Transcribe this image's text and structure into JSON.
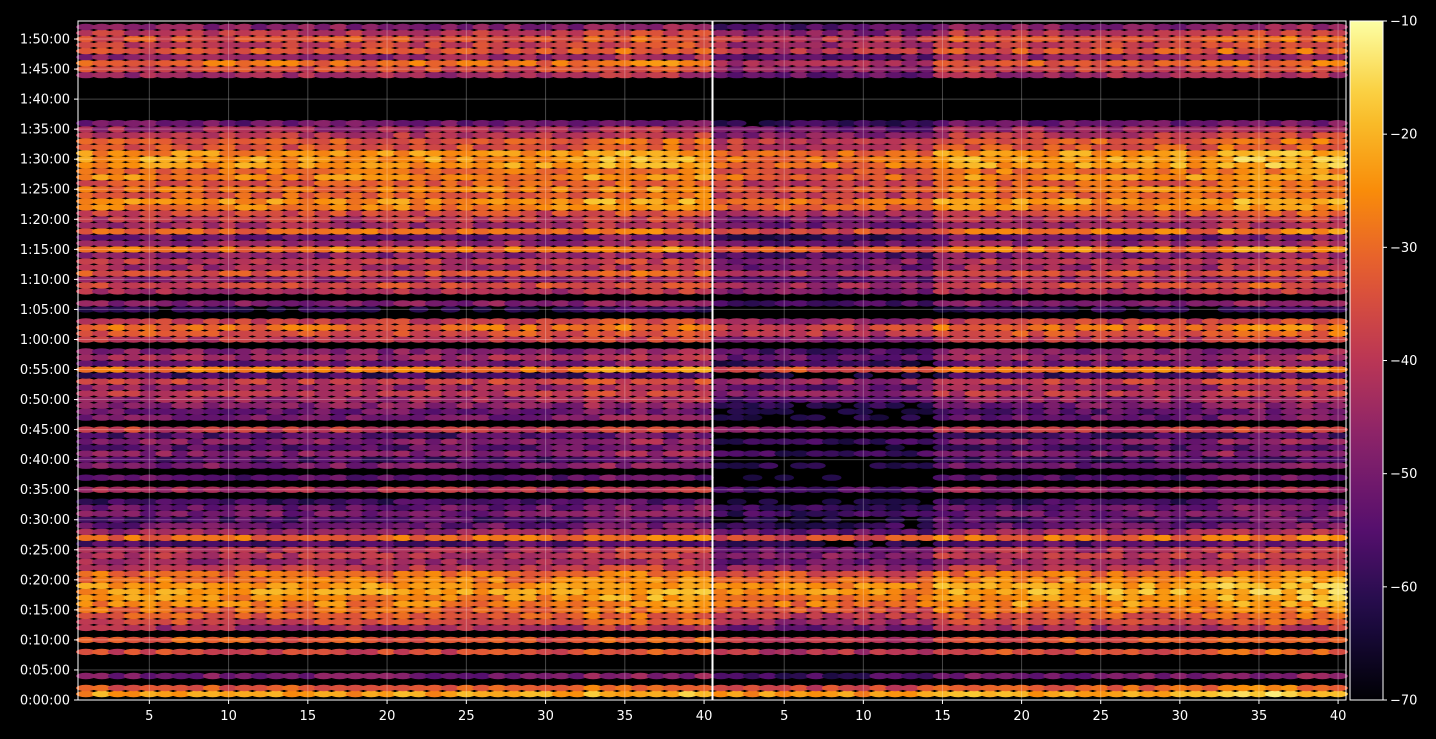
{
  "chart_data": {
    "type": "heatmap",
    "title": "",
    "panels": [
      {
        "name": "",
        "x_range": [
          1,
          40
        ],
        "x_ticks": [
          5,
          10,
          15,
          20,
          25,
          30,
          35,
          40
        ]
      },
      {
        "name": "",
        "x_range": [
          1,
          40
        ],
        "x_ticks": [
          5,
          10,
          15,
          20,
          25,
          30,
          35,
          40
        ]
      }
    ],
    "y_axis": {
      "unit": "seconds",
      "range": [
        0,
        6780
      ],
      "ticks": [
        {
          "value": 0,
          "label": "0:00:00"
        },
        {
          "value": 300,
          "label": "0:05:00"
        },
        {
          "value": 600,
          "label": "0:10:00"
        },
        {
          "value": 900,
          "label": "0:15:00"
        },
        {
          "value": 1200,
          "label": "0:20:00"
        },
        {
          "value": 1500,
          "label": "0:25:00"
        },
        {
          "value": 1800,
          "label": "0:30:00"
        },
        {
          "value": 2100,
          "label": "0:35:00"
        },
        {
          "value": 2400,
          "label": "0:40:00"
        },
        {
          "value": 2700,
          "label": "0:45:00"
        },
        {
          "value": 3000,
          "label": "0:50:00"
        },
        {
          "value": 3300,
          "label": "0:55:00"
        },
        {
          "value": 3600,
          "label": "1:00:00"
        },
        {
          "value": 3900,
          "label": "1:05:00"
        },
        {
          "value": 4200,
          "label": "1:10:00"
        },
        {
          "value": 4500,
          "label": "1:15:00"
        },
        {
          "value": 4800,
          "label": "1:20:00"
        },
        {
          "value": 5100,
          "label": "1:25:00"
        },
        {
          "value": 5400,
          "label": "1:30:00"
        },
        {
          "value": 5700,
          "label": "1:35:00"
        },
        {
          "value": 6000,
          "label": "1:40:00"
        },
        {
          "value": 6300,
          "label": "1:45:00"
        },
        {
          "value": 6600,
          "label": "1:50:00"
        }
      ]
    },
    "colorbar": {
      "range": [
        -70,
        -10
      ],
      "ticks": [
        {
          "value": -10,
          "label": "−10"
        },
        {
          "value": -20,
          "label": "−20"
        },
        {
          "value": -30,
          "label": "−30"
        },
        {
          "value": -40,
          "label": "−40"
        },
        {
          "value": -50,
          "label": "−50"
        },
        {
          "value": -60,
          "label": "−60"
        },
        {
          "value": -70,
          "label": "−70"
        }
      ],
      "colormap": "inferno"
    },
    "grid": true,
    "row_bands": [
      {
        "t": 60,
        "level": -23,
        "p2": 0.75,
        "gap": false
      },
      {
        "t": 120,
        "level": -33,
        "p2": 0.85,
        "gap": false
      },
      {
        "t": 240,
        "level": -50,
        "p2": 1.0,
        "gap": false
      },
      {
        "t": 300,
        "level": -66,
        "p2": 1.0,
        "gap": true
      },
      {
        "t": 480,
        "level": -36,
        "p2": 0.9,
        "gap": false
      },
      {
        "t": 600,
        "level": -33,
        "p2": 0.95,
        "gap": false
      },
      {
        "t": 720,
        "level": -43,
        "p2": 1.0,
        "gap": false
      },
      {
        "t": 780,
        "level": -36,
        "p2": 1.0,
        "gap": false
      },
      {
        "t": 840,
        "level": -33,
        "p2": 1.0,
        "gap": false
      },
      {
        "t": 900,
        "level": -30,
        "p2": 0.85,
        "gap": false
      },
      {
        "t": 960,
        "level": -27,
        "p2": 0.8,
        "gap": false
      },
      {
        "t": 1020,
        "level": -25,
        "p2": 0.8,
        "gap": false
      },
      {
        "t": 1080,
        "level": -23,
        "p2": 0.8,
        "gap": false
      },
      {
        "t": 1140,
        "level": -24,
        "p2": 0.8,
        "gap": false
      },
      {
        "t": 1200,
        "level": -28,
        "p2": 0.85,
        "gap": false
      },
      {
        "t": 1260,
        "level": -30,
        "p2": 0.9,
        "gap": false
      },
      {
        "t": 1320,
        "level": -40,
        "p2": 1.0,
        "gap": false
      },
      {
        "t": 1380,
        "level": -45,
        "p2": 1.0,
        "gap": false
      },
      {
        "t": 1440,
        "level": -40,
        "p2": 1.0,
        "gap": false
      },
      {
        "t": 1500,
        "level": -42,
        "p2": 1.0,
        "gap": false
      },
      {
        "t": 1560,
        "level": -55,
        "p2": 1.0,
        "gap": false
      },
      {
        "t": 1620,
        "level": -30,
        "p2": 0.9,
        "gap": false
      },
      {
        "t": 1680,
        "level": -45,
        "p2": 1.0,
        "gap": false
      },
      {
        "t": 1740,
        "level": -52,
        "p2": 1.0,
        "gap": false
      },
      {
        "t": 1800,
        "level": -56,
        "p2": 1.0,
        "gap": false
      },
      {
        "t": 1860,
        "level": -50,
        "p2": 1.0,
        "gap": false
      },
      {
        "t": 1920,
        "level": -52,
        "p2": 1.0,
        "gap": false
      },
      {
        "t": 1980,
        "level": -58,
        "p2": 1.0,
        "gap": false
      },
      {
        "t": 2040,
        "level": -66,
        "p2": 1.0,
        "gap": true
      },
      {
        "t": 2100,
        "level": -42,
        "p2": 1.2,
        "gap": false
      },
      {
        "t": 2220,
        "level": -54,
        "p2": 1.1,
        "gap": false
      },
      {
        "t": 2340,
        "level": -50,
        "p2": 1.1,
        "gap": false
      },
      {
        "t": 2400,
        "level": -56,
        "p2": 1.2,
        "gap": false
      },
      {
        "t": 2460,
        "level": -48,
        "p2": 1.1,
        "gap": false
      },
      {
        "t": 2520,
        "level": -54,
        "p2": 1.2,
        "gap": false
      },
      {
        "t": 2580,
        "level": -48,
        "p2": 1.1,
        "gap": false
      },
      {
        "t": 2640,
        "level": -56,
        "p2": 1.2,
        "gap": false
      },
      {
        "t": 2700,
        "level": -38,
        "p2": 1.1,
        "gap": false
      },
      {
        "t": 2760,
        "level": -66,
        "p2": 1.0,
        "gap": true
      },
      {
        "t": 2820,
        "level": -50,
        "p2": 1.2,
        "gap": false
      },
      {
        "t": 2880,
        "level": -52,
        "p2": 1.2,
        "gap": false
      },
      {
        "t": 2940,
        "level": -48,
        "p2": 1.2,
        "gap": false
      },
      {
        "t": 3000,
        "level": -45,
        "p2": 1.1,
        "gap": false
      },
      {
        "t": 3060,
        "level": -40,
        "p2": 1.0,
        "gap": false
      },
      {
        "t": 3120,
        "level": -46,
        "p2": 1.0,
        "gap": false
      },
      {
        "t": 3180,
        "level": -38,
        "p2": 1.0,
        "gap": false
      },
      {
        "t": 3240,
        "level": -58,
        "p2": 1.0,
        "gap": false
      },
      {
        "t": 3300,
        "level": -28,
        "p2": 0.95,
        "gap": false
      },
      {
        "t": 3360,
        "level": -52,
        "p2": 1.0,
        "gap": false
      },
      {
        "t": 3420,
        "level": -44,
        "p2": 1.0,
        "gap": false
      },
      {
        "t": 3480,
        "level": -48,
        "p2": 1.0,
        "gap": false
      },
      {
        "t": 3540,
        "level": -66,
        "p2": 1.0,
        "gap": true
      },
      {
        "t": 3600,
        "level": -40,
        "p2": 1.0,
        "gap": false
      },
      {
        "t": 3660,
        "level": -34,
        "p2": 0.95,
        "gap": false
      },
      {
        "t": 3720,
        "level": -30,
        "p2": 0.95,
        "gap": false
      },
      {
        "t": 3780,
        "level": -38,
        "p2": 1.0,
        "gap": false
      },
      {
        "t": 3840,
        "level": -66,
        "p2": 1.0,
        "gap": true
      },
      {
        "t": 3900,
        "level": -62,
        "p2": 1.0,
        "gap": false
      },
      {
        "t": 3960,
        "level": -48,
        "p2": 1.0,
        "gap": false
      },
      {
        "t": 4020,
        "level": -66,
        "p2": 1.0,
        "gap": true
      },
      {
        "t": 4080,
        "level": -42,
        "p2": 1.0,
        "gap": false
      },
      {
        "t": 4140,
        "level": -36,
        "p2": 1.0,
        "gap": false
      },
      {
        "t": 4200,
        "level": -46,
        "p2": 1.0,
        "gap": false
      },
      {
        "t": 4260,
        "level": -34,
        "p2": 1.0,
        "gap": false
      },
      {
        "t": 4320,
        "level": -44,
        "p2": 1.0,
        "gap": false
      },
      {
        "t": 4380,
        "level": -40,
        "p2": 1.0,
        "gap": false
      },
      {
        "t": 4440,
        "level": -48,
        "p2": 1.0,
        "gap": false
      },
      {
        "t": 4500,
        "level": -28,
        "p2": 0.9,
        "gap": false
      },
      {
        "t": 4560,
        "level": -46,
        "p2": 1.0,
        "gap": false
      },
      {
        "t": 4620,
        "level": -52,
        "p2": 1.0,
        "gap": false
      },
      {
        "t": 4680,
        "level": -30,
        "p2": 0.9,
        "gap": false
      },
      {
        "t": 4740,
        "level": -44,
        "p2": 1.0,
        "gap": false
      },
      {
        "t": 4800,
        "level": -40,
        "p2": 1.0,
        "gap": false
      },
      {
        "t": 4860,
        "level": -36,
        "p2": 0.95,
        "gap": false
      },
      {
        "t": 4920,
        "level": -27,
        "p2": 0.9,
        "gap": false
      },
      {
        "t": 4980,
        "level": -25,
        "p2": 0.9,
        "gap": false
      },
      {
        "t": 5040,
        "level": -32,
        "p2": 0.95,
        "gap": false
      },
      {
        "t": 5100,
        "level": -28,
        "p2": 0.9,
        "gap": false
      },
      {
        "t": 5160,
        "level": -33,
        "p2": 0.95,
        "gap": false
      },
      {
        "t": 5220,
        "level": -26,
        "p2": 0.9,
        "gap": false
      },
      {
        "t": 5280,
        "level": -30,
        "p2": 0.9,
        "gap": false
      },
      {
        "t": 5340,
        "level": -24,
        "p2": 0.9,
        "gap": false
      },
      {
        "t": 5400,
        "level": -23,
        "p2": 0.9,
        "gap": false
      },
      {
        "t": 5460,
        "level": -25,
        "p2": 0.9,
        "gap": false
      },
      {
        "t": 5520,
        "level": -34,
        "p2": 0.95,
        "gap": false
      },
      {
        "t": 5580,
        "level": -33,
        "p2": 0.95,
        "gap": false
      },
      {
        "t": 5640,
        "level": -40,
        "p2": 1.0,
        "gap": false
      },
      {
        "t": 5700,
        "level": -44,
        "p2": 1.0,
        "gap": false
      },
      {
        "t": 5760,
        "level": -52,
        "p2": 1.0,
        "gap": false
      },
      {
        "t": 5820,
        "level": -66,
        "p2": 1.0,
        "gap": true
      },
      {
        "t": 5880,
        "level": -66,
        "p2": 1.0,
        "gap": true
      },
      {
        "t": 5940,
        "level": -66,
        "p2": 1.0,
        "gap": true
      },
      {
        "t": 6000,
        "level": -66,
        "p2": 1.0,
        "gap": true
      },
      {
        "t": 6060,
        "level": -66,
        "p2": 1.0,
        "gap": true
      },
      {
        "t": 6120,
        "level": -66,
        "p2": 1.0,
        "gap": true
      },
      {
        "t": 6180,
        "level": -66,
        "p2": 1.0,
        "gap": true
      },
      {
        "t": 6240,
        "level": -44,
        "p2": 1.0,
        "gap": false
      },
      {
        "t": 6300,
        "level": -36,
        "p2": 1.1,
        "gap": false
      },
      {
        "t": 6360,
        "level": -30,
        "p2": 1.15,
        "gap": false
      },
      {
        "t": 6420,
        "level": -46,
        "p2": 1.0,
        "gap": false
      },
      {
        "t": 6480,
        "level": -34,
        "p2": 0.95,
        "gap": false
      },
      {
        "t": 6540,
        "level": -38,
        "p2": 0.95,
        "gap": false
      },
      {
        "t": 6600,
        "level": -34,
        "p2": 0.95,
        "gap": false
      },
      {
        "t": 6660,
        "level": -40,
        "p2": 1.0,
        "gap": false
      },
      {
        "t": 6720,
        "level": -48,
        "p2": 1.0,
        "gap": false
      }
    ]
  }
}
